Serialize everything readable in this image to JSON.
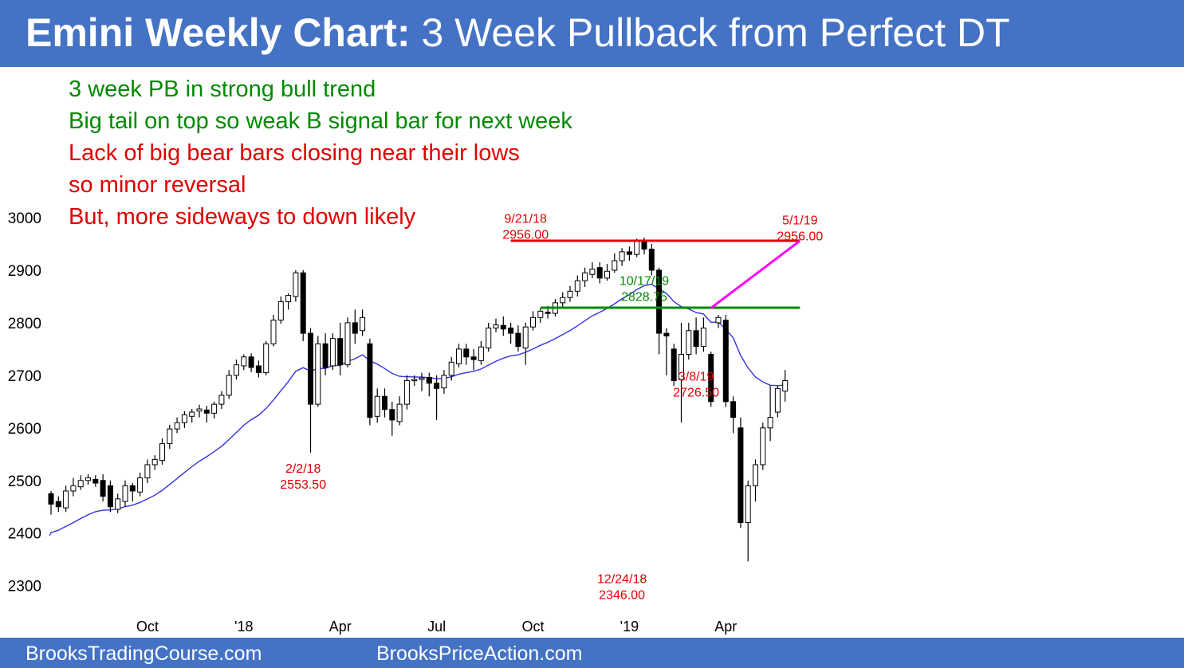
{
  "header": {
    "title_bold": "Emini Weekly Chart:",
    "title_rest": " 3 Week Pullback from Perfect DT"
  },
  "notes": [
    {
      "text": "3 week PB in strong bull trend",
      "color": "#008a00"
    },
    {
      "text": "Big tail on top so weak B signal bar for next week",
      "color": "#008a00"
    },
    {
      "text": "Lack of big bear bars closing near their lows",
      "color": "#e00000"
    },
    {
      "text": "so minor reversal",
      "color": "#e00000"
    },
    {
      "text": "But, more sideways to down likely",
      "color": "#e00000"
    }
  ],
  "footer": {
    "left": "BrooksTradingCourse.com",
    "right": "BrooksPriceAction.com"
  },
  "chart_data": {
    "type": "candlestick",
    "ylim": [
      2230,
      3020
    ],
    "yticks": [
      2300,
      2400,
      2500,
      2600,
      2700,
      2800,
      2900,
      3000
    ],
    "xlim": [
      0,
      105
    ],
    "xticks": [
      {
        "label": "Oct",
        "x": 13
      },
      {
        "label": "'18",
        "x": 26
      },
      {
        "label": "Apr",
        "x": 39
      },
      {
        "label": "Jul",
        "x": 52
      },
      {
        "label": "Oct",
        "x": 65
      },
      {
        "label": "'19",
        "x": 78
      },
      {
        "label": "Apr",
        "x": 91
      }
    ],
    "colors": {
      "bull": "#ffffff",
      "bear": "#000000",
      "wick": "#000000",
      "ema": "#3333dd"
    },
    "candles": [
      [
        2475,
        2455,
        2480,
        2435
      ],
      [
        2460,
        2450,
        2470,
        2440
      ],
      [
        2448,
        2480,
        2490,
        2440
      ],
      [
        2480,
        2490,
        2505,
        2470
      ],
      [
        2488,
        2500,
        2510,
        2482
      ],
      [
        2500,
        2505,
        2512,
        2492
      ],
      [
        2502,
        2495,
        2510,
        2488
      ],
      [
        2500,
        2470,
        2512,
        2460
      ],
      [
        2490,
        2450,
        2500,
        2440
      ],
      [
        2445,
        2465,
        2475,
        2438
      ],
      [
        2460,
        2490,
        2500,
        2450
      ],
      [
        2490,
        2480,
        2495,
        2460
      ],
      [
        2478,
        2505,
        2515,
        2470
      ],
      [
        2505,
        2530,
        2540,
        2495
      ],
      [
        2530,
        2540,
        2548,
        2520
      ],
      [
        2538,
        2570,
        2580,
        2530
      ],
      [
        2570,
        2598,
        2606,
        2560
      ],
      [
        2598,
        2610,
        2620,
        2590
      ],
      [
        2610,
        2625,
        2632,
        2600
      ],
      [
        2622,
        2630,
        2636,
        2610
      ],
      [
        2632,
        2636,
        2644,
        2620
      ],
      [
        2634,
        2628,
        2642,
        2610
      ],
      [
        2628,
        2645,
        2650,
        2618
      ],
      [
        2645,
        2662,
        2670,
        2636
      ],
      [
        2662,
        2700,
        2710,
        2655
      ],
      [
        2700,
        2720,
        2730,
        2692
      ],
      [
        2718,
        2735,
        2740,
        2710
      ],
      [
        2735,
        2715,
        2742,
        2706
      ],
      [
        2718,
        2705,
        2728,
        2696
      ],
      [
        2705,
        2760,
        2765,
        2700
      ],
      [
        2760,
        2805,
        2815,
        2755
      ],
      [
        2805,
        2840,
        2850,
        2798
      ],
      [
        2840,
        2852,
        2856,
        2825
      ],
      [
        2850,
        2895,
        2900,
        2840
      ],
      [
        2895,
        2780,
        2900,
        2765
      ],
      [
        2780,
        2645,
        2790,
        2553
      ],
      [
        2645,
        2760,
        2775,
        2640
      ],
      [
        2760,
        2715,
        2780,
        2700
      ],
      [
        2718,
        2770,
        2780,
        2710
      ],
      [
        2770,
        2720,
        2800,
        2700
      ],
      [
        2720,
        2800,
        2810,
        2715
      ],
      [
        2800,
        2780,
        2825,
        2760
      ],
      [
        2785,
        2810,
        2825,
        2775
      ],
      [
        2760,
        2620,
        2770,
        2605
      ],
      [
        2622,
        2660,
        2675,
        2610
      ],
      [
        2660,
        2635,
        2675,
        2620
      ],
      [
        2635,
        2615,
        2650,
        2585
      ],
      [
        2612,
        2645,
        2660,
        2605
      ],
      [
        2645,
        2690,
        2700,
        2635
      ],
      [
        2690,
        2692,
        2700,
        2680
      ],
      [
        2692,
        2695,
        2705,
        2670
      ],
      [
        2696,
        2685,
        2705,
        2660
      ],
      [
        2685,
        2675,
        2700,
        2615
      ],
      [
        2676,
        2700,
        2710,
        2665
      ],
      [
        2700,
        2725,
        2735,
        2690
      ],
      [
        2722,
        2750,
        2760,
        2715
      ],
      [
        2750,
        2735,
        2760,
        2720
      ],
      [
        2735,
        2730,
        2750,
        2710
      ],
      [
        2728,
        2754,
        2765,
        2720
      ],
      [
        2752,
        2790,
        2800,
        2745
      ],
      [
        2790,
        2796,
        2808,
        2782
      ],
      [
        2795,
        2788,
        2812,
        2775
      ],
      [
        2790,
        2780,
        2800,
        2760
      ],
      [
        2780,
        2755,
        2795,
        2745
      ],
      [
        2752,
        2792,
        2800,
        2720
      ],
      [
        2792,
        2810,
        2822,
        2785
      ],
      [
        2810,
        2822,
        2828,
        2800
      ],
      [
        2820,
        2818,
        2832,
        2808
      ],
      [
        2818,
        2838,
        2845,
        2812
      ],
      [
        2838,
        2848,
        2858,
        2830
      ],
      [
        2848,
        2860,
        2870,
        2840
      ],
      [
        2860,
        2880,
        2890,
        2850
      ],
      [
        2880,
        2895,
        2905,
        2868
      ],
      [
        2892,
        2902,
        2915,
        2885
      ],
      [
        2905,
        2885,
        2915,
        2875
      ],
      [
        2885,
        2898,
        2912,
        2880
      ],
      [
        2900,
        2918,
        2932,
        2895
      ],
      [
        2918,
        2935,
        2942,
        2908
      ],
      [
        2935,
        2930,
        2945,
        2918
      ],
      [
        2930,
        2955,
        2960,
        2925
      ],
      [
        2955,
        2940,
        2962,
        2930
      ],
      [
        2940,
        2900,
        2950,
        2890
      ],
      [
        2900,
        2780,
        2905,
        2740
      ],
      [
        2780,
        2775,
        2790,
        2700
      ],
      [
        2750,
        2690,
        2760,
        2680
      ],
      [
        2692,
        2740,
        2800,
        2610
      ],
      [
        2740,
        2785,
        2800,
        2730
      ],
      [
        2785,
        2755,
        2810,
        2740
      ],
      [
        2755,
        2790,
        2810,
        2745
      ],
      [
        2740,
        2650,
        2745,
        2640
      ],
      [
        2800,
        2810,
        2815,
        2790
      ],
      [
        2805,
        2650,
        2815,
        2640
      ],
      [
        2650,
        2620,
        2660,
        2590
      ],
      [
        2600,
        2420,
        2620,
        2410
      ],
      [
        2420,
        2490,
        2500,
        2346
      ],
      [
        2490,
        2530,
        2540,
        2460
      ],
      [
        2530,
        2600,
        2610,
        2520
      ],
      [
        2600,
        2620,
        2680,
        2575
      ],
      [
        2630,
        2675,
        2680,
        2620
      ],
      [
        2670,
        2690,
        2710,
        2650
      ]
    ]
  },
  "ema": {
    "label": ""
  },
  "lines": [
    {
      "name": "double-top-line",
      "x1": 62,
      "y1": 2956,
      "x2": 101,
      "y2": 2956,
      "color": "#e00000"
    },
    {
      "name": "support-line",
      "x1": 66,
      "y1": 2828.75,
      "x2": 101,
      "y2": 2828.75,
      "color": "#008a00"
    },
    {
      "name": "trend-channel-line",
      "x1": 89,
      "y1": 2828,
      "x2": 101,
      "y2": 2956,
      "color": "#ff00ff"
    }
  ],
  "annotations": [
    {
      "name": "annotation-9-21-18",
      "lines": [
        "9/21/18",
        "2956.00"
      ],
      "x": 64,
      "y": 2990,
      "color": "#e00000"
    },
    {
      "name": "annotation-5-1-19",
      "lines": [
        "5/1/19",
        "2956.00"
      ],
      "x": 101,
      "y": 2987,
      "color": "#e00000"
    },
    {
      "name": "annotation-10-17-19",
      "lines": [
        "10/17/19",
        "2828.75"
      ],
      "x": 80,
      "y": 2872,
      "color": "#008a00"
    },
    {
      "name": "annotation-3-8-19",
      "lines": [
        "3/8/19",
        "2726.50"
      ],
      "x": 87,
      "y": 2690,
      "color": "#e00000"
    },
    {
      "name": "annotation-2-2-18",
      "lines": [
        "2/2/18",
        "2553.50"
      ],
      "x": 34,
      "y": 2515,
      "color": "#e00000"
    },
    {
      "name": "annotation-12-24-18",
      "lines": [
        "12/24/18",
        "2346.00"
      ],
      "x": 77,
      "y": 2305,
      "color": "#e00000"
    }
  ]
}
